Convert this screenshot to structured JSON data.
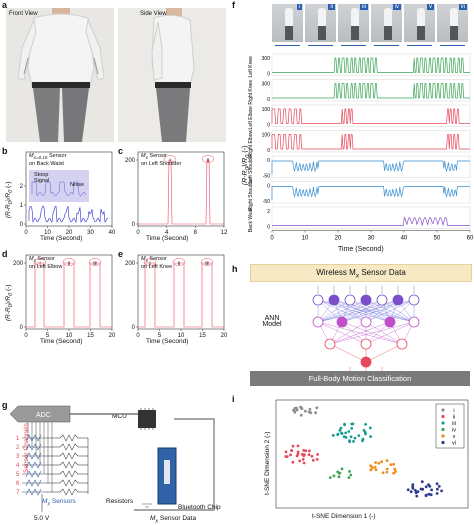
{
  "panels": {
    "a": {
      "label": "a",
      "front": "Front View",
      "side": "Side View"
    },
    "b": {
      "label": "b",
      "sensor": "M",
      "sub": "x=0.15",
      "on": "Sensor",
      "loc": "on Back Waist",
      "inset1": "Stoop",
      "inset2": "Signal",
      "inset3": "Noise",
      "ylabel": "(R-R",
      "ylabel2": ")/R",
      "ylabel3": " (-)",
      "xlabel": "Time (Second)",
      "xticks": [
        "0",
        "10",
        "20",
        "30",
        "40"
      ],
      "yticks": [
        "0",
        "1",
        "2"
      ]
    },
    "c": {
      "label": "c",
      "sensor": "M",
      "sub": "x",
      "on": " Sensor",
      "loc": "on Left Shoulder",
      "xlabel": "Time (Second)",
      "xticks": [
        "0",
        "4",
        "8",
        "12"
      ],
      "yticks": [
        "0",
        "200"
      ],
      "marks": [
        "i",
        "ii"
      ]
    },
    "d": {
      "label": "d",
      "sensor": "M",
      "sub": "x",
      "on": " Sensor",
      "loc": "on Left Elbow",
      "xlabel": "Time (Second)",
      "xticks": [
        "0",
        "5",
        "10",
        "15",
        "20"
      ],
      "yticks": [
        "0",
        "200"
      ],
      "marks": [
        "i",
        "ii",
        "iii"
      ]
    },
    "e": {
      "label": "e",
      "sensor": "M",
      "sub": "x",
      "on": " Sensor",
      "loc": "on Left Knee",
      "xlabel": "Time (Second)",
      "xticks": [
        "0",
        "5",
        "10",
        "15",
        "20"
      ],
      "yticks": [
        "0",
        "200"
      ],
      "marks": [
        "i",
        "ii",
        "iii"
      ]
    },
    "f": {
      "label": "f",
      "romans": [
        "i",
        "ii",
        "iii",
        "iv",
        "v",
        "vi"
      ],
      "rows": [
        {
          "name": "Left Knee",
          "color": "#3aa655",
          "ticks": [
            "300",
            "0"
          ]
        },
        {
          "name": "Right Knee",
          "color": "#3aa655",
          "ticks": [
            "300",
            "0"
          ]
        },
        {
          "name": "Left Elbow",
          "color": "#e8495a",
          "ticks": [
            "100",
            "0"
          ]
        },
        {
          "name": "Right Elbow",
          "color": "#e8495a",
          "ticks": [
            "100",
            "0"
          ]
        },
        {
          "name": "Left Shoulder",
          "color": "#3a8fd0",
          "ticks": [
            "0",
            "-50"
          ]
        },
        {
          "name": "Right Shoulder",
          "color": "#3a8fd0",
          "ticks": [
            "0",
            "-50"
          ]
        },
        {
          "name": "Back Waist",
          "color": "#8a4fc9",
          "ticks": [
            "2",
            "0"
          ]
        }
      ],
      "ylabel": "(R-R",
      "ylabel2": ")/R",
      "ylabel3": " (-)",
      "xlabel": "Time (Second)",
      "xticks": [
        "0",
        "10",
        "20",
        "30",
        "40",
        "50",
        "60"
      ]
    },
    "g": {
      "label": "g",
      "adc": "ADC",
      "mcu": "MCU",
      "channels": "Sensor Channels",
      "nums": [
        "1",
        "2",
        "3",
        "4",
        "5",
        "6",
        "7"
      ],
      "sensors": "M",
      "sensors2": " Sensors",
      "resistors": "Resistors",
      "voltage": "5.0 V",
      "bt": "Bluetooth Chip",
      "data": "M",
      "data2": " Sensor Data"
    },
    "h": {
      "label": "h",
      "banner": "Wireless M",
      "banner2": " Sensor Data",
      "model": "ANN",
      "model2": "Model",
      "footer": "Full-Body Motion Classification"
    },
    "i": {
      "label": "i",
      "ylabel": "t-SNE Dimension 2 (-)",
      "xlabel": "t-SNE Dimension 1 (-)",
      "legend": [
        "i",
        "ii",
        "iii",
        "iv",
        "v",
        "vi"
      ]
    }
  },
  "colors": {
    "green": "#3aa655",
    "red": "#e8495a",
    "blue": "#3a8fd0",
    "purple": "#8a4fc9",
    "teal": "#169c94",
    "orange": "#f08c1e",
    "navy": "#2b3a8c",
    "gray": "#8c8c8c"
  }
}
